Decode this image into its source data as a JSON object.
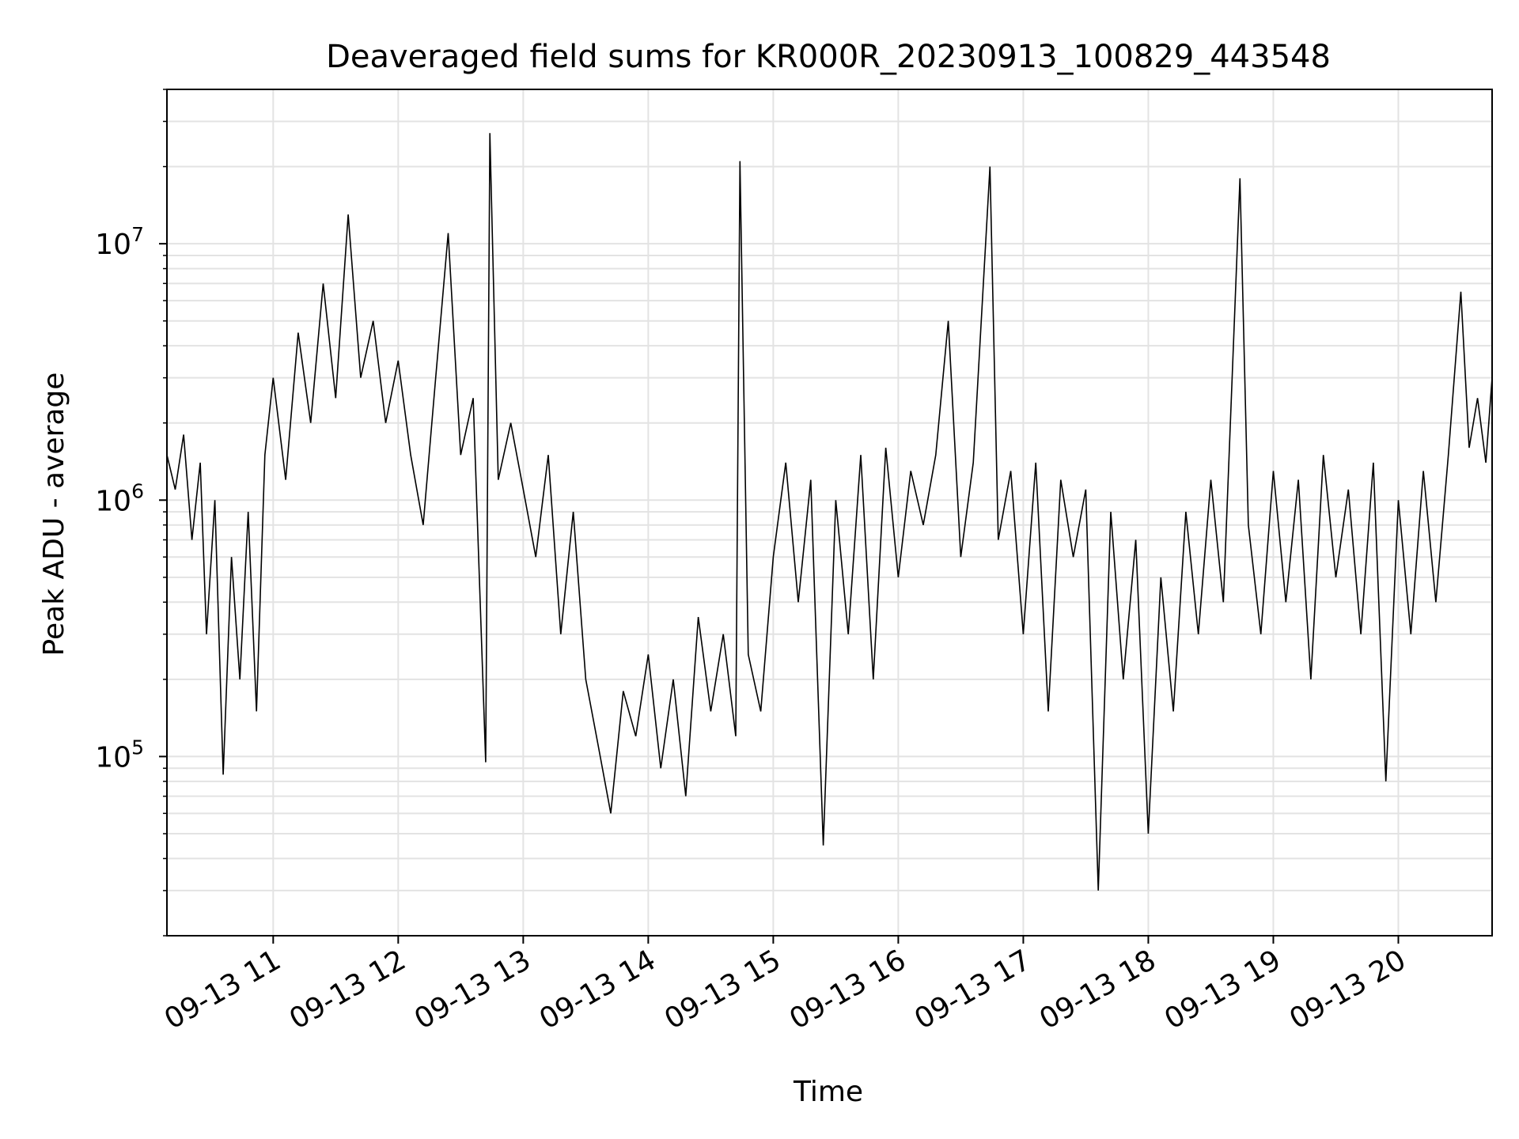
{
  "chart_data": {
    "type": "line",
    "title": "Deaveraged field sums for KR000R_20230913_100829_443548",
    "xlabel": "Time",
    "ylabel": "Peak ADU - average",
    "yscale": "log",
    "xlim": [
      "2023-09-13 10:09",
      "2023-09-13 20:45"
    ],
    "ylim": [
      20000,
      40000000
    ],
    "grid": true,
    "x_tick_labels": [
      "09-13 11",
      "09-13 12",
      "09-13 13",
      "09-13 14",
      "09-13 15",
      "09-13 16",
      "09-13 17",
      "09-13 18",
      "09-13 19",
      "09-13 20"
    ],
    "y_tick_labels": [
      {
        "base": "10",
        "exp": "5",
        "value": 100000
      },
      {
        "base": "10",
        "exp": "6",
        "value": 1000000
      },
      {
        "base": "10",
        "exp": "7",
        "value": 10000000
      }
    ],
    "series": [
      {
        "color": "#000000",
        "points": [
          [
            "2023-09-13 10:09",
            1500000
          ],
          [
            "2023-09-13 10:13",
            1100000
          ],
          [
            "2023-09-13 10:17",
            1800000
          ],
          [
            "2023-09-13 10:21",
            700000
          ],
          [
            "2023-09-13 10:25",
            1400000
          ],
          [
            "2023-09-13 10:28",
            300000
          ],
          [
            "2023-09-13 10:32",
            1000000
          ],
          [
            "2023-09-13 10:36",
            85000
          ],
          [
            "2023-09-13 10:40",
            600000
          ],
          [
            "2023-09-13 10:44",
            200000
          ],
          [
            "2023-09-13 10:48",
            900000
          ],
          [
            "2023-09-13 10:52",
            150000
          ],
          [
            "2023-09-13 10:56",
            1500000
          ],
          [
            "2023-09-13 11:00",
            3000000
          ],
          [
            "2023-09-13 11:06",
            1200000
          ],
          [
            "2023-09-13 11:12",
            4500000
          ],
          [
            "2023-09-13 11:18",
            2000000
          ],
          [
            "2023-09-13 11:24",
            7000000
          ],
          [
            "2023-09-13 11:30",
            2500000
          ],
          [
            "2023-09-13 11:36",
            13000000
          ],
          [
            "2023-09-13 11:42",
            3000000
          ],
          [
            "2023-09-13 11:48",
            5000000
          ],
          [
            "2023-09-13 11:54",
            2000000
          ],
          [
            "2023-09-13 12:00",
            3500000
          ],
          [
            "2023-09-13 12:06",
            1500000
          ],
          [
            "2023-09-13 12:12",
            800000
          ],
          [
            "2023-09-13 12:18",
            3000000
          ],
          [
            "2023-09-13 12:24",
            11000000
          ],
          [
            "2023-09-13 12:30",
            1500000
          ],
          [
            "2023-09-13 12:36",
            2500000
          ],
          [
            "2023-09-13 12:42",
            95000
          ],
          [
            "2023-09-13 12:44",
            27000000
          ],
          [
            "2023-09-13 12:48",
            1200000
          ],
          [
            "2023-09-13 12:54",
            2000000
          ],
          [
            "2023-09-13 13:00",
            1100000
          ],
          [
            "2023-09-13 13:06",
            600000
          ],
          [
            "2023-09-13 13:12",
            1500000
          ],
          [
            "2023-09-13 13:18",
            300000
          ],
          [
            "2023-09-13 13:24",
            900000
          ],
          [
            "2023-09-13 13:30",
            200000
          ],
          [
            "2023-09-13 13:36",
            110000
          ],
          [
            "2023-09-13 13:42",
            60000
          ],
          [
            "2023-09-13 13:48",
            180000
          ],
          [
            "2023-09-13 13:54",
            120000
          ],
          [
            "2023-09-13 14:00",
            250000
          ],
          [
            "2023-09-13 14:06",
            90000
          ],
          [
            "2023-09-13 14:12",
            200000
          ],
          [
            "2023-09-13 14:18",
            70000
          ],
          [
            "2023-09-13 14:24",
            350000
          ],
          [
            "2023-09-13 14:30",
            150000
          ],
          [
            "2023-09-13 14:36",
            300000
          ],
          [
            "2023-09-13 14:42",
            120000
          ],
          [
            "2023-09-13 14:44",
            21000000
          ],
          [
            "2023-09-13 14:48",
            250000
          ],
          [
            "2023-09-13 14:54",
            150000
          ],
          [
            "2023-09-13 15:00",
            600000
          ],
          [
            "2023-09-13 15:06",
            1400000
          ],
          [
            "2023-09-13 15:12",
            400000
          ],
          [
            "2023-09-13 15:18",
            1200000
          ],
          [
            "2023-09-13 15:24",
            45000
          ],
          [
            "2023-09-13 15:30",
            1000000
          ],
          [
            "2023-09-13 15:36",
            300000
          ],
          [
            "2023-09-13 15:42",
            1500000
          ],
          [
            "2023-09-13 15:48",
            200000
          ],
          [
            "2023-09-13 15:54",
            1600000
          ],
          [
            "2023-09-13 16:00",
            500000
          ],
          [
            "2023-09-13 16:06",
            1300000
          ],
          [
            "2023-09-13 16:12",
            800000
          ],
          [
            "2023-09-13 16:18",
            1500000
          ],
          [
            "2023-09-13 16:24",
            5000000
          ],
          [
            "2023-09-13 16:30",
            600000
          ],
          [
            "2023-09-13 16:36",
            1400000
          ],
          [
            "2023-09-13 16:44",
            20000000
          ],
          [
            "2023-09-13 16:48",
            700000
          ],
          [
            "2023-09-13 16:54",
            1300000
          ],
          [
            "2023-09-13 17:00",
            300000
          ],
          [
            "2023-09-13 17:06",
            1400000
          ],
          [
            "2023-09-13 17:12",
            150000
          ],
          [
            "2023-09-13 17:18",
            1200000
          ],
          [
            "2023-09-13 17:24",
            600000
          ],
          [
            "2023-09-13 17:30",
            1100000
          ],
          [
            "2023-09-13 17:36",
            30000
          ],
          [
            "2023-09-13 17:42",
            900000
          ],
          [
            "2023-09-13 17:48",
            200000
          ],
          [
            "2023-09-13 17:54",
            700000
          ],
          [
            "2023-09-13 18:00",
            50000
          ],
          [
            "2023-09-13 18:06",
            500000
          ],
          [
            "2023-09-13 18:12",
            150000
          ],
          [
            "2023-09-13 18:18",
            900000
          ],
          [
            "2023-09-13 18:24",
            300000
          ],
          [
            "2023-09-13 18:30",
            1200000
          ],
          [
            "2023-09-13 18:36",
            400000
          ],
          [
            "2023-09-13 18:44",
            18000000
          ],
          [
            "2023-09-13 18:48",
            800000
          ],
          [
            "2023-09-13 18:54",
            300000
          ],
          [
            "2023-09-13 19:00",
            1300000
          ],
          [
            "2023-09-13 19:06",
            400000
          ],
          [
            "2023-09-13 19:12",
            1200000
          ],
          [
            "2023-09-13 19:18",
            200000
          ],
          [
            "2023-09-13 19:24",
            1500000
          ],
          [
            "2023-09-13 19:30",
            500000
          ],
          [
            "2023-09-13 19:36",
            1100000
          ],
          [
            "2023-09-13 19:42",
            300000
          ],
          [
            "2023-09-13 19:48",
            1400000
          ],
          [
            "2023-09-13 19:54",
            80000
          ],
          [
            "2023-09-13 20:00",
            1000000
          ],
          [
            "2023-09-13 20:06",
            300000
          ],
          [
            "2023-09-13 20:12",
            1300000
          ],
          [
            "2023-09-13 20:18",
            400000
          ],
          [
            "2023-09-13 20:24",
            1500000
          ],
          [
            "2023-09-13 20:30",
            6500000
          ],
          [
            "2023-09-13 20:34",
            1600000
          ],
          [
            "2023-09-13 20:38",
            2500000
          ],
          [
            "2023-09-13 20:42",
            1400000
          ],
          [
            "2023-09-13 20:45",
            3000000
          ]
        ]
      }
    ]
  }
}
